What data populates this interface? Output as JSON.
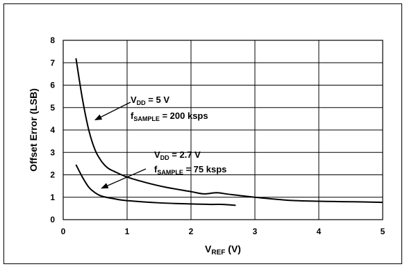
{
  "chart_data": {
    "type": "line",
    "xlabel": "VREF (V)",
    "xlabel_parts": {
      "main": "V",
      "sub": "REF",
      "tail": " (V)"
    },
    "ylabel": "Offset Error (LSB)",
    "xlim": [
      0,
      5
    ],
    "ylim": [
      0,
      8
    ],
    "x_ticks": [
      0,
      1,
      2,
      3,
      4,
      5
    ],
    "y_ticks": [
      0,
      1,
      2,
      3,
      4,
      5,
      6,
      7,
      8
    ],
    "grid": true,
    "series": [
      {
        "points": [
          [
            0.2,
            7.2
          ],
          [
            0.3,
            5.4
          ],
          [
            0.4,
            4.0
          ],
          [
            0.5,
            3.1
          ],
          [
            0.6,
            2.6
          ],
          [
            0.7,
            2.3
          ],
          [
            0.8,
            2.15
          ],
          [
            1.0,
            1.9
          ],
          [
            1.3,
            1.65
          ],
          [
            1.6,
            1.45
          ],
          [
            2.0,
            1.25
          ],
          [
            2.2,
            1.15
          ],
          [
            2.4,
            1.2
          ],
          [
            2.6,
            1.13
          ],
          [
            3.0,
            1.0
          ],
          [
            3.5,
            0.87
          ],
          [
            4.0,
            0.82
          ],
          [
            4.5,
            0.8
          ],
          [
            5.0,
            0.77
          ]
        ]
      },
      {
        "points": [
          [
            0.2,
            2.45
          ],
          [
            0.3,
            1.9
          ],
          [
            0.4,
            1.45
          ],
          [
            0.5,
            1.2
          ],
          [
            0.6,
            1.05
          ],
          [
            0.8,
            0.93
          ],
          [
            1.0,
            0.85
          ],
          [
            1.5,
            0.75
          ],
          [
            2.0,
            0.7
          ],
          [
            2.3,
            0.68
          ],
          [
            2.5,
            0.68
          ],
          [
            2.7,
            0.64
          ]
        ]
      }
    ],
    "annotations": [
      {
        "line1": {
          "main": "V",
          "sub": "DD",
          "tail": " = 5 V"
        },
        "line2": {
          "main": "f",
          "sub": "SAMPLE",
          "tail": " = 200 ksps"
        },
        "arrow_to": [
          0.5,
          4.45
        ],
        "series_index": 0
      },
      {
        "line1": {
          "main": "V",
          "sub": "DD",
          "tail": " = 2.7 V"
        },
        "line2": {
          "main": "f",
          "sub": "SAMPLE",
          "tail": " = 75 ksps"
        },
        "arrow_to": [
          0.6,
          1.4
        ],
        "series_index": 1
      }
    ],
    "colors": {
      "line": "#000000",
      "grid": "#000000",
      "frame": "#000000"
    }
  }
}
